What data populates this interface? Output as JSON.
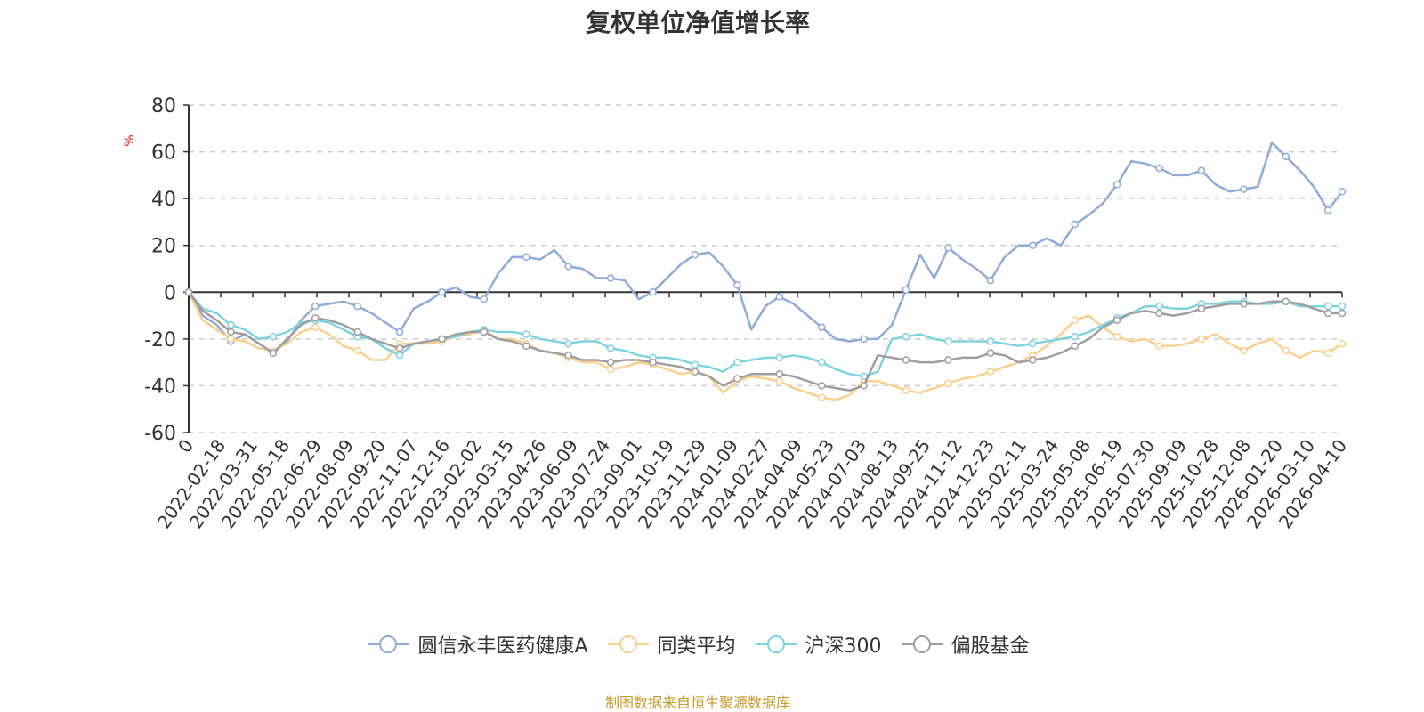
{
  "title": "复权单位净值增长率",
  "source": "制图数据来自恒生聚源数据库",
  "y_unit": "%",
  "chart_data": {
    "type": "line",
    "title": "复权单位净值增长率",
    "ylabel": "%",
    "ylim": [
      -60,
      80
    ],
    "y_ticks": [
      80,
      60,
      40,
      20,
      0,
      -20,
      -40,
      -60
    ],
    "x_ticks": [
      "0",
      "2022-02-18",
      "2022-03-31",
      "2022-05-18",
      "2022-06-29",
      "2022-08-09",
      "2022-09-20",
      "2022-11-07",
      "2022-12-16",
      "2023-02-02",
      "2023-03-15",
      "2023-04-26",
      "2023-06-09",
      "2023-07-24",
      "2023-09-01",
      "2023-10-19",
      "2023-11-29",
      "2024-01-09",
      "2024-02-27",
      "2024-04-09",
      "2024-05-23",
      "2024-07-03",
      "2024-08-13",
      "2024-09-25",
      "2024-11-12",
      "2024-12-23",
      "2025-02-11",
      "2025-03-24",
      "2025-05-08",
      "2025-06-19",
      "2025-07-30",
      "2025-09-09",
      "2025-10-28",
      "2025-12-08",
      "2026-01-20",
      "2026-03-10",
      "2026-04-10"
    ],
    "grid": true,
    "legend_position": "bottom",
    "series": [
      {
        "name": "圆信永丰医药健康A",
        "color": "#8eabd9",
        "values": [
          0,
          -10,
          -14,
          -21,
          -18,
          -22,
          -26,
          -21,
          -12,
          -6,
          -5,
          -4,
          -6,
          -9,
          -13,
          -17,
          -7,
          -4,
          0,
          2,
          -2,
          -3,
          8,
          15,
          15,
          14,
          18,
          11,
          10,
          6,
          6,
          5,
          -3,
          0,
          6,
          12,
          16,
          17,
          11,
          3,
          -16,
          -6,
          -2,
          -5,
          -10,
          -15,
          -20,
          -21,
          -20,
          -20,
          -14,
          1,
          16,
          6,
          19,
          14,
          10,
          5,
          15,
          20,
          20,
          23,
          20,
          29,
          33,
          38,
          46,
          56,
          55,
          53,
          50,
          50,
          52,
          46,
          43,
          44,
          45,
          64,
          58,
          52,
          45,
          35,
          43
        ]
      },
      {
        "name": "同类平均",
        "color": "#fbd08d",
        "values": [
          0,
          -12,
          -16,
          -20,
          -21,
          -24,
          -25,
          -22,
          -17,
          -15,
          -18,
          -23,
          -25,
          -29,
          -29,
          -22,
          -22,
          -22,
          -21,
          -19,
          -18,
          -16,
          -20,
          -20,
          -22,
          -25,
          -26,
          -28,
          -30,
          -30,
          -33,
          -32,
          -30,
          -31,
          -33,
          -35,
          -34,
          -36,
          -43,
          -38,
          -36,
          -37,
          -38,
          -41,
          -43,
          -45,
          -46,
          -44,
          -38,
          -38,
          -40,
          -42,
          -43,
          -41,
          -39,
          -37,
          -36,
          -34,
          -32,
          -30,
          -27,
          -23,
          -18,
          -12,
          -10,
          -15,
          -19,
          -21,
          -20,
          -23,
          -23,
          -22,
          -20,
          -18,
          -22,
          -25,
          -22,
          -20,
          -25,
          -28,
          -25,
          -26,
          -22
        ]
      },
      {
        "name": "沪深300",
        "color": "#7fd3e0",
        "values": [
          0,
          -7,
          -9,
          -14,
          -16,
          -20,
          -19,
          -17,
          -13,
          -12,
          -13,
          -16,
          -19,
          -20,
          -24,
          -27,
          -22,
          -21,
          -20,
          -19,
          -17,
          -16,
          -17,
          -17,
          -18,
          -20,
          -21,
          -22,
          -21,
          -21,
          -24,
          -25,
          -27,
          -28,
          -28,
          -29,
          -31,
          -32,
          -34,
          -30,
          -29,
          -28,
          -28,
          -27,
          -28,
          -30,
          -33,
          -35,
          -36,
          -34,
          -20,
          -19,
          -18,
          -20,
          -21,
          -21,
          -21,
          -21,
          -22,
          -23,
          -22,
          -21,
          -20,
          -19,
          -17,
          -14,
          -11,
          -9,
          -6,
          -6,
          -7,
          -7,
          -5,
          -5,
          -4,
          -4,
          -5,
          -5,
          -4,
          -6,
          -6,
          -6,
          -6
        ]
      },
      {
        "name": "偏股基金",
        "color": "#9e9e9e",
        "values": [
          0,
          -8,
          -12,
          -17,
          -18,
          -22,
          -26,
          -20,
          -14,
          -11,
          -12,
          -14,
          -17,
          -20,
          -22,
          -24,
          -22,
          -21,
          -20,
          -18,
          -17,
          -17,
          -20,
          -21,
          -23,
          -25,
          -26,
          -27,
          -29,
          -29,
          -30,
          -29,
          -29,
          -30,
          -31,
          -32,
          -34,
          -36,
          -40,
          -37,
          -35,
          -35,
          -35,
          -36,
          -38,
          -40,
          -41,
          -42,
          -40,
          -27,
          -28,
          -29,
          -30,
          -30,
          -29,
          -28,
          -28,
          -26,
          -27,
          -30,
          -29,
          -28,
          -26,
          -23,
          -20,
          -15,
          -12,
          -9,
          -8,
          -9,
          -10,
          -9,
          -7,
          -6,
          -5,
          -5,
          -5,
          -4,
          -4,
          -5,
          -7,
          -9,
          -9
        ]
      }
    ]
  }
}
